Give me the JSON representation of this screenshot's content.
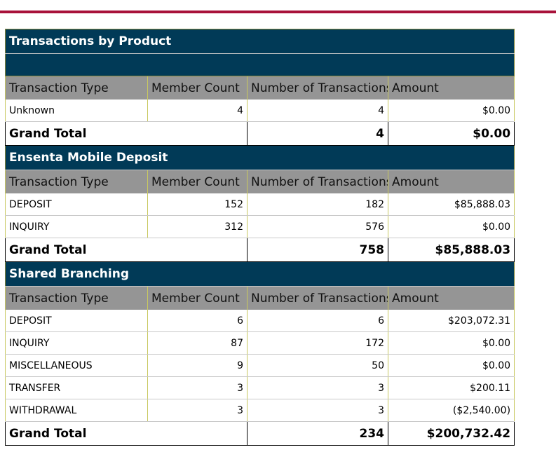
{
  "header_columns": [
    "Transaction Type",
    "Member Count",
    "Number of Transactions",
    "Amount"
  ],
  "sections": [
    {
      "title": "Transactions by Product",
      "rows": [
        {
          "type": "Unknown",
          "members": "4",
          "transactions": "4",
          "amount": "$0.00"
        }
      ],
      "total": {
        "label": "Grand Total",
        "transactions": "4",
        "amount": "$0.00"
      }
    },
    {
      "title": "Ensenta Mobile Deposit",
      "rows": [
        {
          "type": "DEPOSIT",
          "members": "152",
          "transactions": "182",
          "amount": "$85,888.03"
        },
        {
          "type": "INQUIRY",
          "members": "312",
          "transactions": "576",
          "amount": "$0.00"
        }
      ],
      "total": {
        "label": "Grand Total",
        "transactions": "758",
        "amount": "$85,888.03"
      }
    },
    {
      "title": "Shared Branching",
      "rows": [
        {
          "type": "DEPOSIT",
          "members": "6",
          "transactions": "6",
          "amount": "$203,072.31"
        },
        {
          "type": "INQUIRY",
          "members": "87",
          "transactions": "172",
          "amount": "$0.00"
        },
        {
          "type": "MISCELLANEOUS",
          "members": "9",
          "transactions": "50",
          "amount": "$0.00"
        },
        {
          "type": "TRANSFER",
          "members": "3",
          "transactions": "3",
          "amount": "$200.11"
        },
        {
          "type": "WITHDRAWAL",
          "members": "3",
          "transactions": "3",
          "amount": "($2,540.00)"
        }
      ],
      "total": {
        "label": "Grand Total",
        "transactions": "234",
        "amount": "$200,732.42"
      }
    }
  ],
  "colors": {
    "accent_bar": "#a8123a",
    "section_header": "#013a57",
    "column_header": "#959595"
  }
}
